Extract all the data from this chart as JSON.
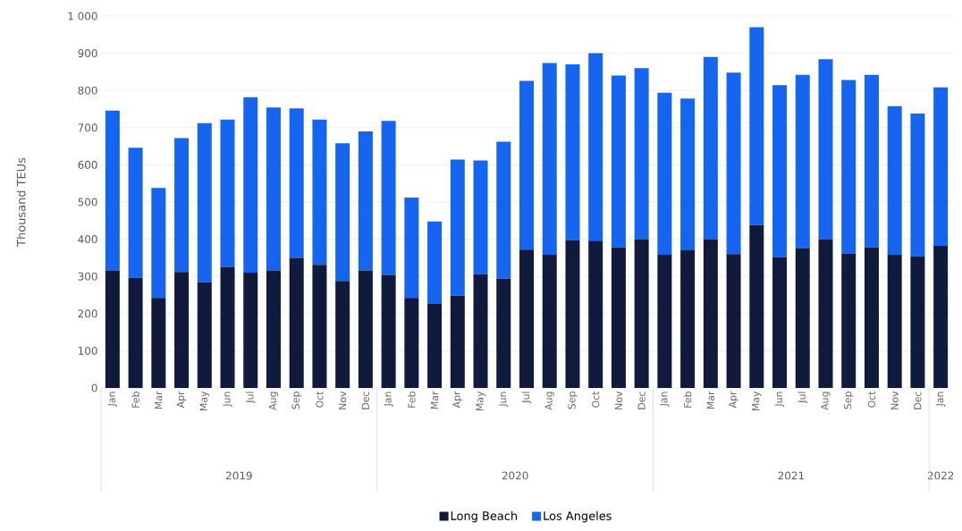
{
  "chart_data": {
    "type": "bar",
    "stacked": true,
    "ylabel": "Thousand TEUs",
    "categories": [
      "Jan",
      "Feb",
      "Mar",
      "Apr",
      "May",
      "Jun",
      "Jul",
      "Aug",
      "Sep",
      "Oct",
      "Nov",
      "Dec",
      "Jan",
      "Feb",
      "Mar",
      "Apr",
      "May",
      "Jun",
      "Jul",
      "Aug",
      "Sep",
      "Oct",
      "Nov",
      "Dec",
      "Jan",
      "Feb",
      "Mar",
      "Apr",
      "May",
      "Jun",
      "Jul",
      "Aug",
      "Sep",
      "Oct",
      "Nov",
      "Dec",
      "Jan"
    ],
    "series": [
      {
        "name": "Long Beach",
        "color": "#0f1a3c",
        "values": [
          316,
          296,
          242,
          312,
          284,
          326,
          310,
          316,
          350,
          331,
          288,
          316,
          304,
          242,
          226,
          248,
          306,
          294,
          372,
          358,
          398,
          396,
          378,
          400,
          358,
          370,
          400,
          360,
          438,
          352,
          376,
          400,
          362,
          378,
          358,
          354,
          382
        ]
      },
      {
        "name": "Los Angeles",
        "color": "#1565f0",
        "values": [
          430,
          350,
          296,
          360,
          428,
          396,
          472,
          438,
          402,
          391,
          370,
          374,
          414,
          270,
          222,
          366,
          306,
          368,
          454,
          516,
          472,
          504,
          462,
          460,
          436,
          408,
          490,
          488,
          532,
          462,
          466,
          484,
          466,
          464,
          400,
          384,
          426
        ]
      }
    ],
    "ylim": [
      0,
      1000
    ],
    "yticks": [
      0,
      100,
      200,
      300,
      400,
      500,
      600,
      700,
      800,
      900,
      {
        "value": 1000,
        "label": "1 000"
      }
    ],
    "grid": "y",
    "legend": "bottom",
    "annotations": [
      "2019",
      "2020",
      "2021",
      "2022"
    ]
  }
}
